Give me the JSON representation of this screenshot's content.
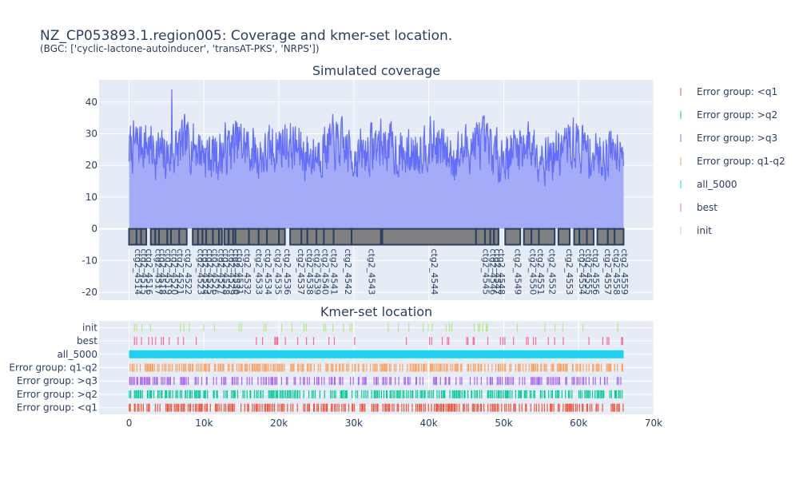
{
  "title": "NZ_CP053893.1.region005: Coverage and kmer-set location.",
  "subtitle": "(BGC: ['cyclic-lactone-autoinducer', 'transAT-PKS', 'NRPS'])",
  "colors": {
    "coverage_line": "#636efa",
    "coverage_fill": "#a4acf7",
    "contig_fill": "#808080",
    "contig_border": "#2a3f5f",
    "plot_bg": "#e5ecf6",
    "grid": "#ffffff"
  },
  "chart_data": [
    {
      "type": "area",
      "title": "Simulated coverage",
      "xlim": [
        -4000,
        70000
      ],
      "ylim": [
        -22.5,
        47
      ],
      "y_ticks": [
        -20,
        -10,
        0,
        10,
        20,
        30,
        40
      ],
      "x_ticks": [
        0,
        10000,
        20000,
        30000,
        40000,
        50000,
        60000,
        70000
      ],
      "coverage_summary": {
        "x_start": 0,
        "x_end": 66000,
        "mean": 25,
        "min": 8,
        "max": 44,
        "peak_x": 5700
      },
      "contig_track_y": [
        -5,
        0
      ],
      "contigs": [
        {
          "name": "ctg2_4514",
          "start": 0,
          "end": 1000
        },
        {
          "name": "ctg2_4515",
          "start": 1000,
          "end": 1600
        },
        {
          "name": "ctg2_4516",
          "start": 1600,
          "end": 2300
        },
        {
          "name": "ctg2_4517",
          "start": 2900,
          "end": 3500
        },
        {
          "name": "ctg2_4518",
          "start": 3500,
          "end": 4000
        },
        {
          "name": "ctg2_4519",
          "start": 4000,
          "end": 5100
        },
        {
          "name": "ctg2_4520",
          "start": 5100,
          "end": 5600
        },
        {
          "name": "ctg2_4521",
          "start": 5600,
          "end": 6700
        },
        {
          "name": "ctg2_4522",
          "start": 6700,
          "end": 7700
        },
        {
          "name": "ctg2_4523",
          "start": 8500,
          "end": 9200
        },
        {
          "name": "ctg2_4524",
          "start": 9200,
          "end": 9800
        },
        {
          "name": "ctg2_4525",
          "start": 9800,
          "end": 10300
        },
        {
          "name": "ctg2_4526",
          "start": 10300,
          "end": 11200
        },
        {
          "name": "ctg2_4527",
          "start": 11200,
          "end": 12000
        },
        {
          "name": "ctg2_4528",
          "start": 12000,
          "end": 12400
        },
        {
          "name": "ctg2_4529",
          "start": 12700,
          "end": 13300
        },
        {
          "name": "ctg2_4530",
          "start": 13300,
          "end": 13900
        },
        {
          "name": "ctg2_4531",
          "start": 13900,
          "end": 14200
        },
        {
          "name": "ctg2_4532",
          "start": 14200,
          "end": 16000
        },
        {
          "name": "ctg2_4533",
          "start": 16000,
          "end": 17300
        },
        {
          "name": "ctg2_4534",
          "start": 17300,
          "end": 18400
        },
        {
          "name": "ctg2_4535",
          "start": 18400,
          "end": 20000
        },
        {
          "name": "ctg2_4536",
          "start": 20000,
          "end": 20800
        },
        {
          "name": "ctg2_4537",
          "start": 21500,
          "end": 23000
        },
        {
          "name": "ctg2_4538",
          "start": 23000,
          "end": 23800
        },
        {
          "name": "ctg2_4539",
          "start": 23800,
          "end": 25000
        },
        {
          "name": "ctg2_4540",
          "start": 25000,
          "end": 26000
        },
        {
          "name": "ctg2_4541",
          "start": 26000,
          "end": 27300
        },
        {
          "name": "ctg2_4542",
          "start": 27300,
          "end": 29700
        },
        {
          "name": "ctg2_4543",
          "start": 29700,
          "end": 33600
        },
        {
          "name": "ctg2_4544",
          "start": 33800,
          "end": 46300
        },
        {
          "name": "ctg2_4545",
          "start": 46300,
          "end": 47500
        },
        {
          "name": "ctg2_4546",
          "start": 47500,
          "end": 48300
        },
        {
          "name": "ctg2_4547",
          "start": 48200,
          "end": 48700
        },
        {
          "name": "ctg2_4548",
          "start": 48700,
          "end": 49300
        },
        {
          "name": "ctg2_4549",
          "start": 50200,
          "end": 52200
        },
        {
          "name": "ctg2_4550",
          "start": 52700,
          "end": 53700
        },
        {
          "name": "ctg2_4551",
          "start": 53700,
          "end": 54700
        },
        {
          "name": "ctg2_4552",
          "start": 54700,
          "end": 56800
        },
        {
          "name": "ctg2_4553",
          "start": 57300,
          "end": 58800
        },
        {
          "name": "ctg2_4554",
          "start": 59400,
          "end": 60100
        },
        {
          "name": "ctg2_4555",
          "start": 60100,
          "end": 61100
        },
        {
          "name": "ctg2_4556",
          "start": 61100,
          "end": 62000
        },
        {
          "name": "ctg2_4557",
          "start": 62500,
          "end": 63900
        },
        {
          "name": "ctg2_4558",
          "start": 63900,
          "end": 64800
        },
        {
          "name": "ctg2_4559",
          "start": 64800,
          "end": 66000
        }
      ]
    },
    {
      "type": "scatter",
      "title": "Kmer-set location",
      "xlim": [
        -4000,
        70000
      ],
      "x_tick_labels": [
        "0",
        "10k",
        "20k",
        "30k",
        "40k",
        "50k",
        "60k",
        "70k"
      ],
      "x_ticks": [
        0,
        10000,
        20000,
        30000,
        40000,
        50000,
        60000,
        70000
      ],
      "categories": [
        "Error group: <q1",
        "Error group: >q2",
        "Error group: >q3",
        "Error group: q1-q2",
        "all_5000",
        "best",
        "init"
      ],
      "series": [
        {
          "name": "Error group: <q1",
          "color": "#ef553b",
          "density": 0.62,
          "seed": 11
        },
        {
          "name": "Error group: >q2",
          "color": "#00cc96",
          "density": 0.6,
          "seed": 23
        },
        {
          "name": "Error group: >q3",
          "color": "#ab63fa",
          "density": 0.45,
          "seed": 37
        },
        {
          "name": "Error group: q1-q2",
          "color": "#ffa15a",
          "density": 0.62,
          "seed": 41
        },
        {
          "name": "all_5000",
          "color": "#19d3f3",
          "density": 1.0,
          "seed": 53
        },
        {
          "name": "best",
          "color": "#ff6692",
          "density": 0.1,
          "seed": 67
        },
        {
          "name": "init",
          "color": "#b6e880",
          "density": 0.09,
          "seed": 79
        }
      ]
    }
  ],
  "legend": {
    "placement": "right",
    "entries": [
      {
        "label": "Error group: <q1",
        "color": "#ef553b"
      },
      {
        "label": "Error group: >q2",
        "color": "#00cc96"
      },
      {
        "label": "Error group: >q3",
        "color": "#ab63fa"
      },
      {
        "label": "Error group: q1-q2",
        "color": "#ffa15a"
      },
      {
        "label": "all_5000",
        "color": "#19d3f3"
      },
      {
        "label": "best",
        "color": "#ff6692"
      },
      {
        "label": "init",
        "color": "#b6e880"
      }
    ]
  }
}
